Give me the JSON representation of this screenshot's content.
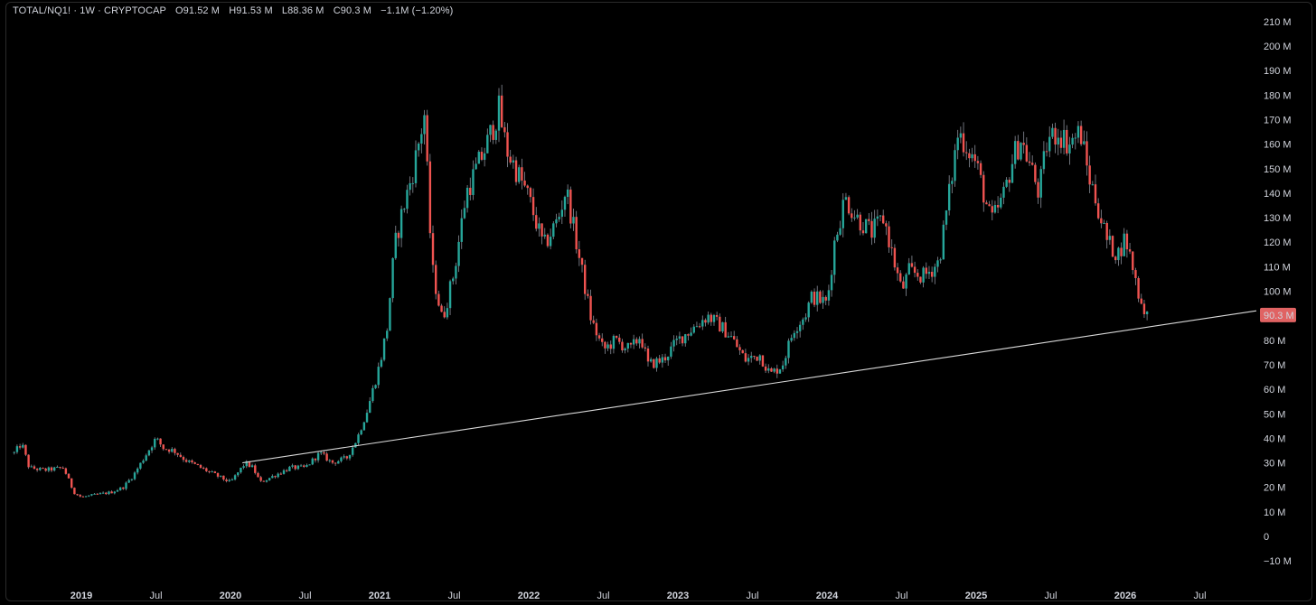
{
  "header": {
    "symbol": "TOTAL/NQ1!",
    "interval": "1W",
    "exchange": "CRYPTOCAP",
    "open_label": "O",
    "open": "91.52 M",
    "high_label": "H",
    "high": "91.53 M",
    "low_label": "L",
    "low": "88.36 M",
    "close_label": "C",
    "close": "90.3 M",
    "change": "−1.1M (−1.20%)"
  },
  "price_tag": "90.3 M",
  "colors": {
    "up": "#26a69a",
    "down": "#ef5350",
    "wick": "#8a8e99",
    "trendline": "#d9d9d9",
    "price_tag_bg": "#e06363",
    "background": "#000000"
  },
  "chart_data": {
    "type": "candlestick",
    "title": "TOTAL/NQ1! · 1W · CRYPTOCAP",
    "ylim": [
      -15,
      215
    ],
    "y_ticks": [
      {
        "value": 210,
        "label": "210 M"
      },
      {
        "value": 200,
        "label": "200 M"
      },
      {
        "value": 190,
        "label": "190 M"
      },
      {
        "value": 180,
        "label": "180 M"
      },
      {
        "value": 170,
        "label": "170 M"
      },
      {
        "value": 160,
        "label": "160 M"
      },
      {
        "value": 150,
        "label": "150 M"
      },
      {
        "value": 140,
        "label": "140 M"
      },
      {
        "value": 130,
        "label": "130 M"
      },
      {
        "value": 120,
        "label": "120 M"
      },
      {
        "value": 110,
        "label": "110 M"
      },
      {
        "value": 100,
        "label": "100 M"
      },
      {
        "value": 80,
        "label": "80 M"
      },
      {
        "value": 70,
        "label": "70 M"
      },
      {
        "value": 60,
        "label": "60 M"
      },
      {
        "value": 50,
        "label": "50 M"
      },
      {
        "value": 40,
        "label": "40 M"
      },
      {
        "value": 30,
        "label": "30 M"
      },
      {
        "value": 20,
        "label": "20 M"
      },
      {
        "value": 10,
        "label": "10 M"
      },
      {
        "value": 0,
        "label": "0"
      },
      {
        "value": -10,
        "label": "−10 M"
      }
    ],
    "x_range": [
      2018.55,
      2026.65
    ],
    "x_ticks": [
      {
        "value": 2019.0,
        "label": "2019",
        "year": true
      },
      {
        "value": 2019.5,
        "label": "Jul",
        "year": false
      },
      {
        "value": 2020.0,
        "label": "2020",
        "year": true
      },
      {
        "value": 2020.5,
        "label": "Jul",
        "year": false
      },
      {
        "value": 2021.0,
        "label": "2021",
        "year": true
      },
      {
        "value": 2021.5,
        "label": "Jul",
        "year": false
      },
      {
        "value": 2022.0,
        "label": "2022",
        "year": true
      },
      {
        "value": 2022.5,
        "label": "Jul",
        "year": false
      },
      {
        "value": 2023.0,
        "label": "2023",
        "year": true
      },
      {
        "value": 2023.5,
        "label": "Jul",
        "year": false
      },
      {
        "value": 2024.0,
        "label": "2024",
        "year": true
      },
      {
        "value": 2024.5,
        "label": "Jul",
        "year": false
      },
      {
        "value": 2025.0,
        "label": "2025",
        "year": true
      },
      {
        "value": 2025.5,
        "label": "Jul",
        "year": false
      },
      {
        "value": 2026.0,
        "label": "2026",
        "year": true
      },
      {
        "value": 2026.5,
        "label": "Jul",
        "year": false
      }
    ],
    "close_path": [
      [
        2018.55,
        34
      ],
      [
        2018.6,
        38
      ],
      [
        2018.65,
        28
      ],
      [
        2018.75,
        27
      ],
      [
        2018.88,
        28
      ],
      [
        2018.95,
        18
      ],
      [
        2019.0,
        16
      ],
      [
        2019.1,
        17
      ],
      [
        2019.2,
        18
      ],
      [
        2019.28,
        20
      ],
      [
        2019.35,
        25
      ],
      [
        2019.45,
        35
      ],
      [
        2019.5,
        40
      ],
      [
        2019.55,
        36
      ],
      [
        2019.62,
        35
      ],
      [
        2019.7,
        31
      ],
      [
        2019.8,
        28
      ],
      [
        2019.9,
        25
      ],
      [
        2020.0,
        22
      ],
      [
        2020.05,
        26
      ],
      [
        2020.1,
        30
      ],
      [
        2020.15,
        28
      ],
      [
        2020.2,
        22
      ],
      [
        2020.3,
        25
      ],
      [
        2020.4,
        28
      ],
      [
        2020.5,
        28
      ],
      [
        2020.6,
        34
      ],
      [
        2020.68,
        30
      ],
      [
        2020.78,
        32
      ],
      [
        2020.85,
        40
      ],
      [
        2020.92,
        52
      ],
      [
        2021.0,
        70
      ],
      [
        2021.05,
        85
      ],
      [
        2021.1,
        118
      ],
      [
        2021.15,
        132
      ],
      [
        2021.22,
        148
      ],
      [
        2021.3,
        172
      ],
      [
        2021.35,
        110
      ],
      [
        2021.42,
        88
      ],
      [
        2021.5,
        108
      ],
      [
        2021.58,
        140
      ],
      [
        2021.65,
        150
      ],
      [
        2021.72,
        160
      ],
      [
        2021.8,
        174
      ],
      [
        2021.85,
        158
      ],
      [
        2021.95,
        145
      ],
      [
        2022.0,
        138
      ],
      [
        2022.1,
        118
      ],
      [
        2022.2,
        130
      ],
      [
        2022.25,
        142
      ],
      [
        2022.35,
        110
      ],
      [
        2022.42,
        88
      ],
      [
        2022.5,
        76
      ],
      [
        2022.58,
        80
      ],
      [
        2022.68,
        76
      ],
      [
        2022.75,
        82
      ],
      [
        2022.8,
        70
      ],
      [
        2022.9,
        72
      ],
      [
        2023.0,
        80
      ],
      [
        2023.1,
        85
      ],
      [
        2023.2,
        90
      ],
      [
        2023.28,
        86
      ],
      [
        2023.35,
        82
      ],
      [
        2023.45,
        72
      ],
      [
        2023.55,
        74
      ],
      [
        2023.62,
        66
      ],
      [
        2023.7,
        70
      ],
      [
        2023.78,
        85
      ],
      [
        2023.85,
        90
      ],
      [
        2023.9,
        98
      ],
      [
        2024.0,
        95
      ],
      [
        2024.05,
        120
      ],
      [
        2024.12,
        138
      ],
      [
        2024.2,
        130
      ],
      [
        2024.3,
        124
      ],
      [
        2024.38,
        130
      ],
      [
        2024.45,
        112
      ],
      [
        2024.5,
        100
      ],
      [
        2024.55,
        108
      ],
      [
        2024.65,
        106
      ],
      [
        2024.75,
        112
      ],
      [
        2024.82,
        140
      ],
      [
        2024.88,
        165
      ],
      [
        2024.95,
        158
      ],
      [
        2025.0,
        152
      ],
      [
        2025.05,
        140
      ],
      [
        2025.1,
        128
      ],
      [
        2025.18,
        138
      ],
      [
        2025.25,
        155
      ],
      [
        2025.3,
        162
      ],
      [
        2025.38,
        148
      ],
      [
        2025.42,
        140
      ],
      [
        2025.48,
        162
      ],
      [
        2025.55,
        165
      ],
      [
        2025.62,
        160
      ],
      [
        2025.7,
        165
      ],
      [
        2025.75,
        148
      ],
      [
        2025.8,
        138
      ],
      [
        2025.88,
        120
      ],
      [
        2025.95,
        115
      ],
      [
        2026.0,
        122
      ],
      [
        2026.05,
        110
      ],
      [
        2026.1,
        96
      ],
      [
        2026.15,
        90.3
      ]
    ],
    "trendline": {
      "from": [
        2020.08,
        30
      ],
      "to": [
        2026.75,
        92
      ]
    }
  }
}
